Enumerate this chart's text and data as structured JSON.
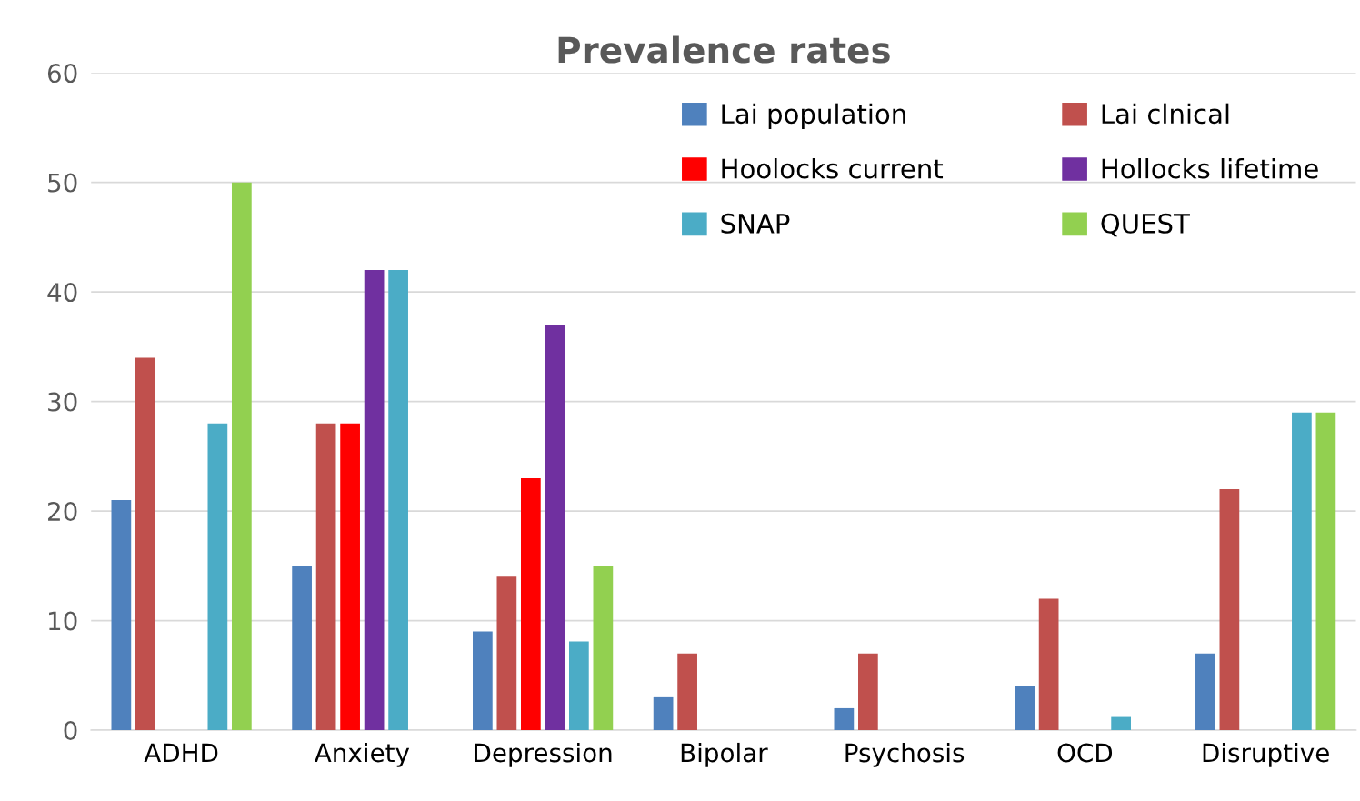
{
  "chart_data": {
    "type": "bar",
    "title": "Prevalence rates",
    "categories": [
      "ADHD",
      "Anxiety",
      "Depression",
      "Bipolar",
      "Psychosis",
      "OCD",
      "Disruptive"
    ],
    "series": [
      {
        "name": "Lai population",
        "color": "#4f81bd",
        "values": [
          21,
          15,
          9,
          3,
          2,
          4,
          7
        ]
      },
      {
        "name": "Lai clnical",
        "color": "#c0504d",
        "values": [
          34,
          28,
          14,
          7,
          7,
          12,
          22
        ]
      },
      {
        "name": "Hoolocks current",
        "color": "#ff0000",
        "values": [
          null,
          28,
          23,
          null,
          null,
          null,
          null
        ]
      },
      {
        "name": "Hollocks lifetime",
        "color": "#7030a0",
        "values": [
          null,
          42,
          37,
          null,
          null,
          null,
          null
        ]
      },
      {
        "name": "SNAP",
        "color": "#4bacc6",
        "values": [
          28,
          42,
          8.1,
          null,
          null,
          1.2,
          29
        ]
      },
      {
        "name": "QUEST",
        "color": "#92d050",
        "values": [
          50,
          null,
          15,
          null,
          null,
          null,
          29
        ]
      }
    ],
    "ylim": [
      0,
      60
    ],
    "yticks": [
      0,
      10,
      20,
      30,
      40,
      50,
      60
    ],
    "grid": "y",
    "legend": "top right"
  }
}
